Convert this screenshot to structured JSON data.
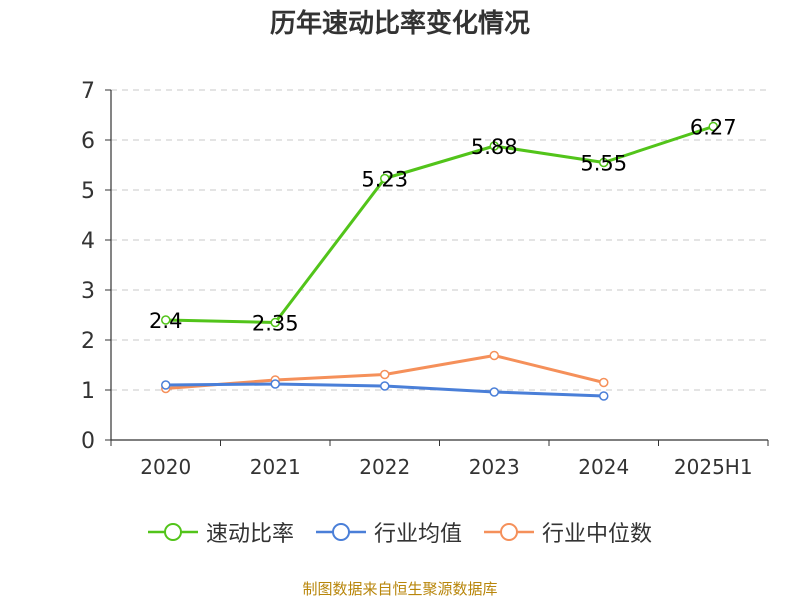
{
  "chart_data": {
    "type": "line",
    "title": "历年速动比率变化情况",
    "categories": [
      "2020",
      "2021",
      "2022",
      "2023",
      "2024",
      "2025H1"
    ],
    "ylim": [
      0,
      7
    ],
    "yticks": [
      "0",
      "1",
      "2",
      "3",
      "4",
      "5",
      "6",
      "7"
    ],
    "grid": true,
    "legend_position": "bottom",
    "series": [
      {
        "name": "速动比率",
        "color": "#52c41a",
        "values": [
          2.4,
          2.35,
          5.23,
          5.88,
          5.55,
          6.27
        ],
        "labels": [
          "2.4",
          "2.35",
          "5.23",
          "5.88",
          "5.55",
          "6.27"
        ]
      },
      {
        "name": "行业均值",
        "color": "#4a7fd8",
        "values": [
          1.1,
          1.12,
          1.08,
          0.96,
          0.88,
          null
        ]
      },
      {
        "name": "行业中位数",
        "color": "#f5905a",
        "values": [
          1.03,
          1.2,
          1.31,
          1.69,
          1.15,
          null
        ]
      }
    ]
  },
  "source_note": "制图数据来自恒生聚源数据库"
}
